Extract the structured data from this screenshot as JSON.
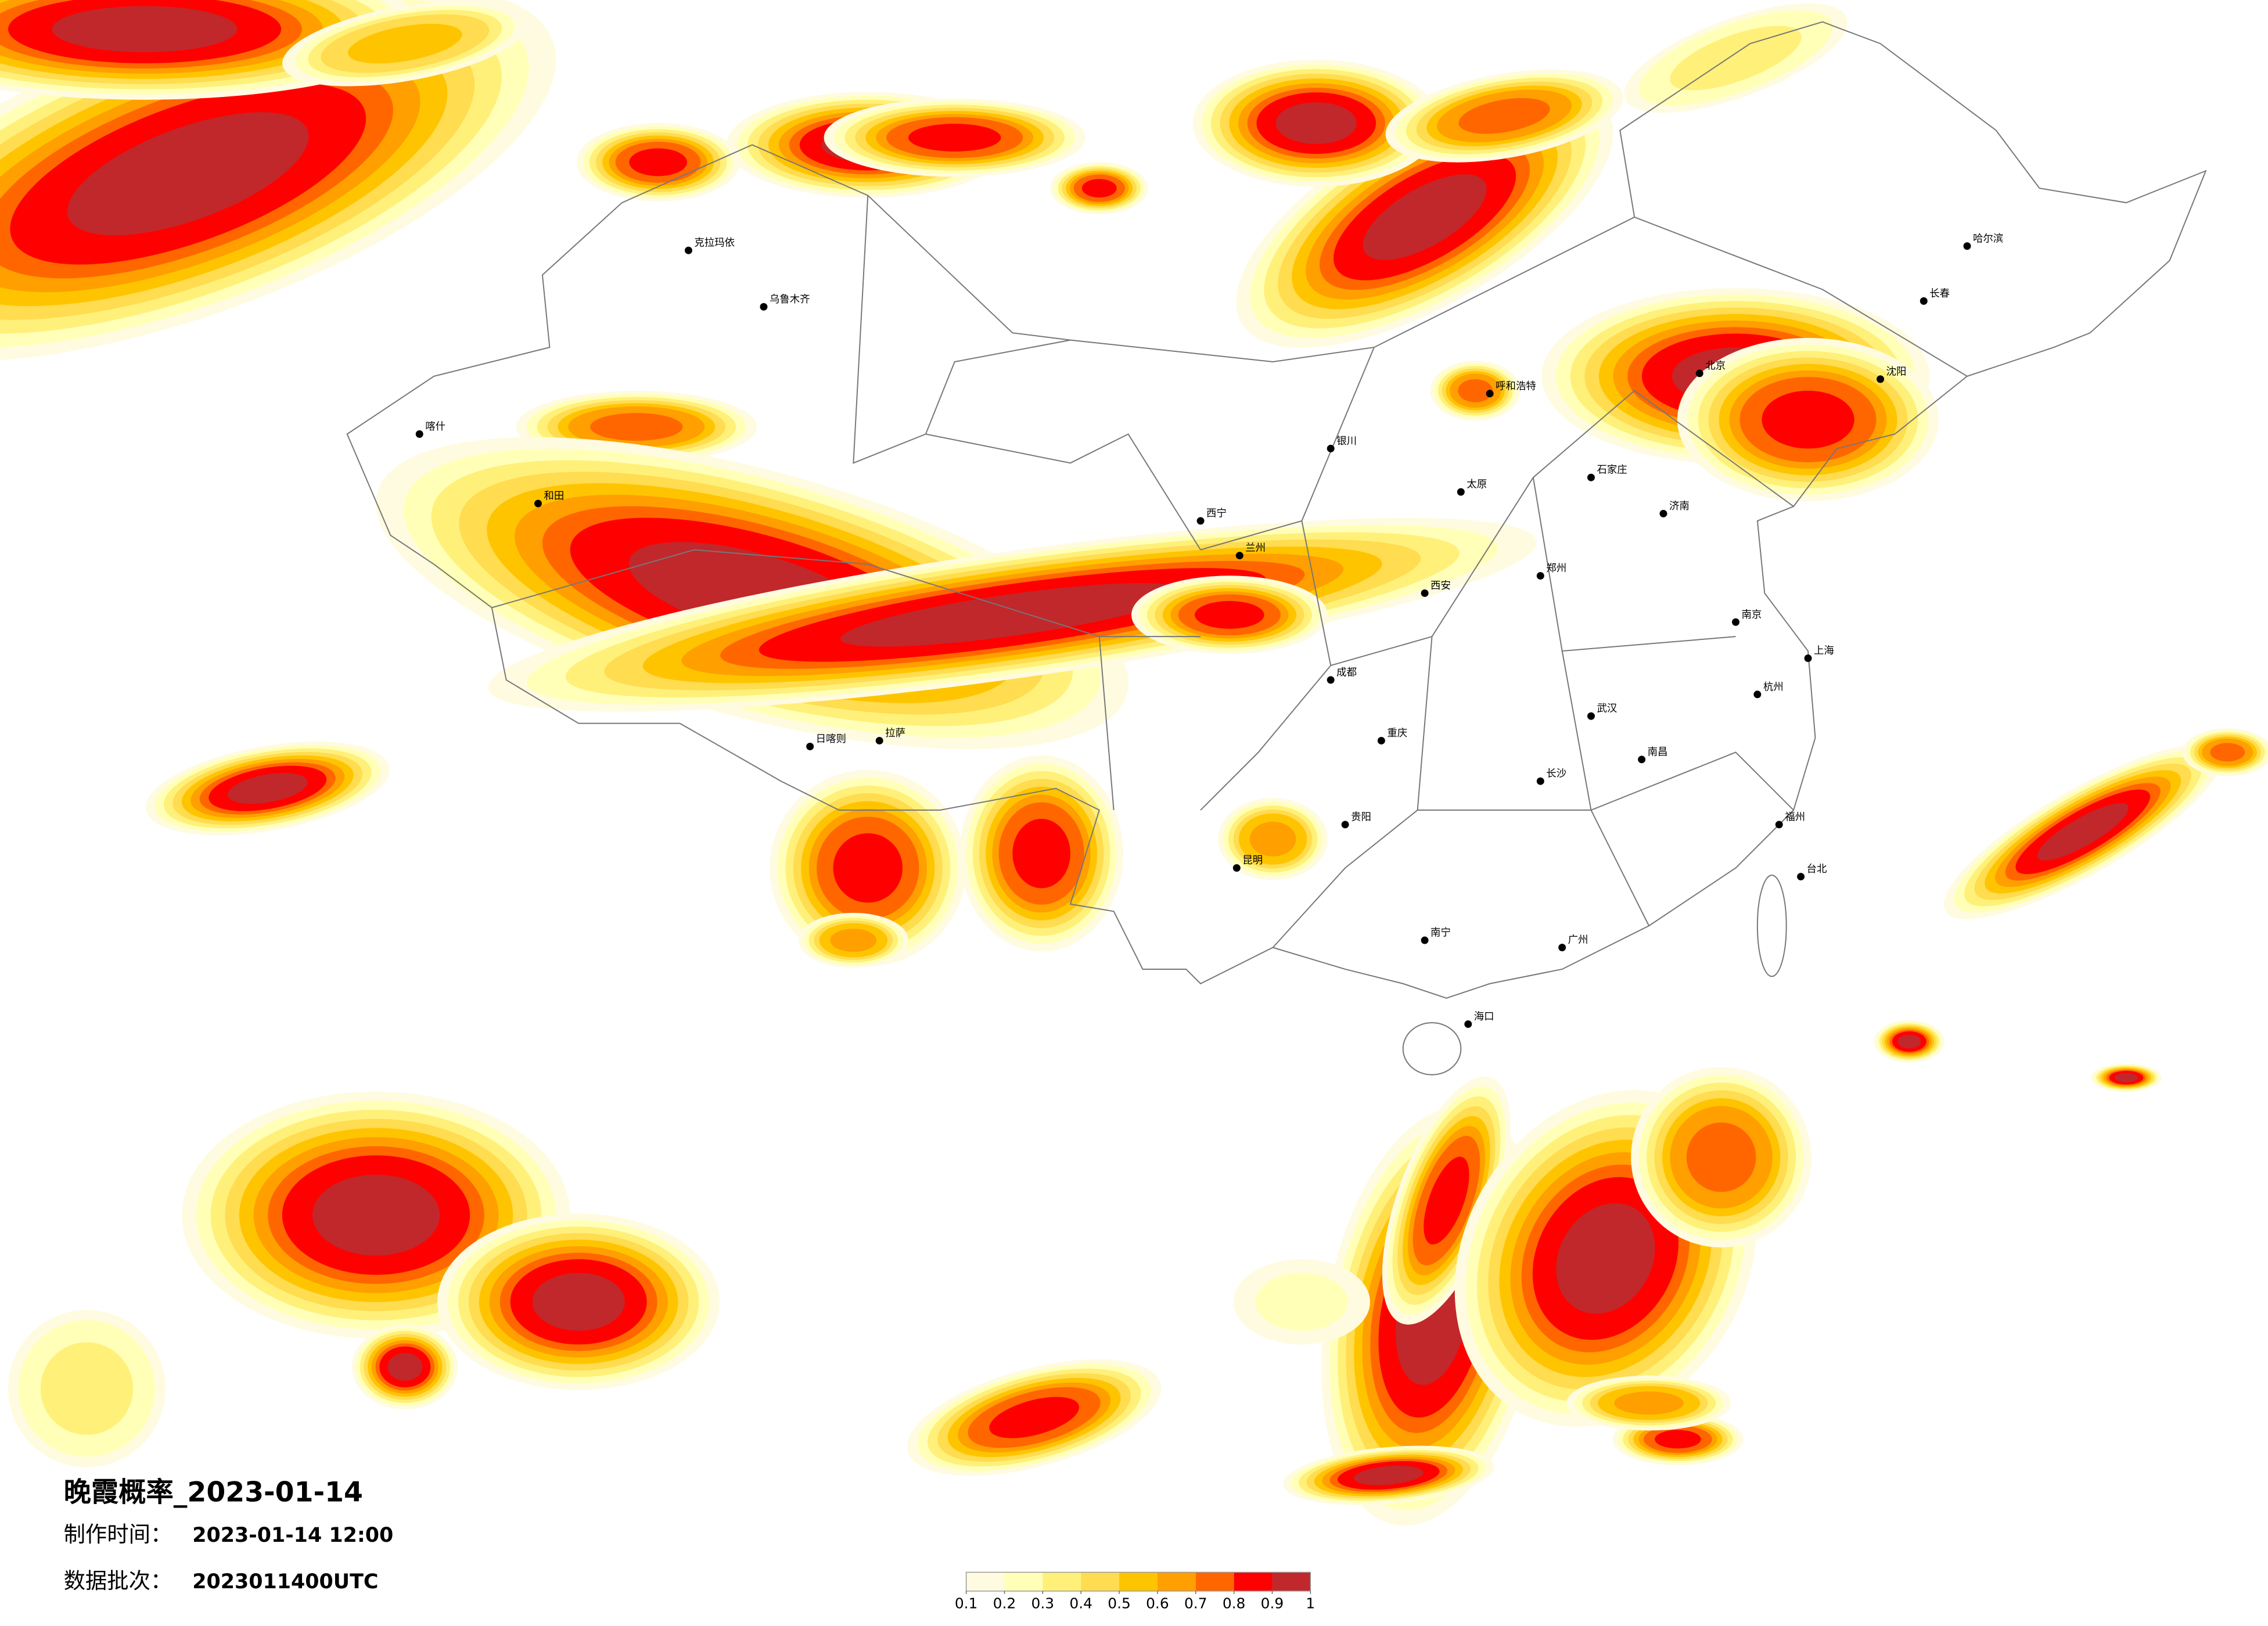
{
  "title": "晚霞概率_2023-01-14",
  "production_time": {
    "label": "制作时间：",
    "value": "2023-01-14 12:00"
  },
  "data_batch": {
    "label": "数据批次：",
    "value": "2023011400UTC"
  },
  "legend": {
    "colors": [
      "#fffbe0",
      "#ffffb8",
      "#fff07a",
      "#ffdc50",
      "#ffc400",
      "#ff9f00",
      "#ff6600",
      "#ff0000",
      "#c0282c"
    ],
    "ticks": [
      0.1,
      0.2,
      0.3,
      0.4,
      0.5,
      0.6,
      0.7,
      0.8,
      0.9,
      1
    ]
  },
  "cities": [
    "克拉玛依",
    "乌鲁木齐",
    "喀什",
    "和田",
    "拉萨",
    "日喀则",
    "西宁",
    "兰州",
    "呼和浩特",
    "哈尔滨",
    "长春",
    "沈阳",
    "北京",
    "济南",
    "郑州",
    "西安",
    "武汉",
    "南京",
    "上海",
    "杭州",
    "成都",
    "重庆",
    "贵阳",
    "昆明",
    "南宁",
    "广州",
    "长沙",
    "南昌",
    "福州",
    "台北",
    "海口",
    "银川",
    "太原",
    "石家庄"
  ]
}
